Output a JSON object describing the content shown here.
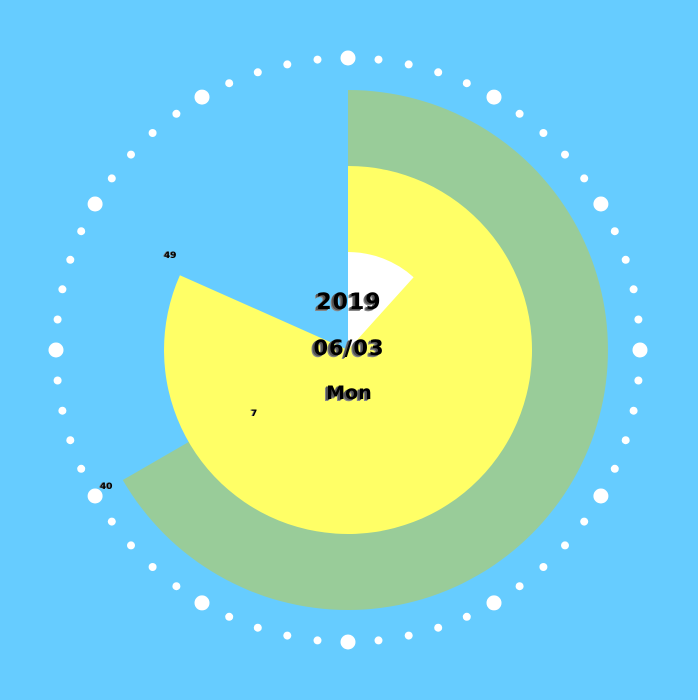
{
  "date_display": {
    "year": "2019",
    "date": "06/03",
    "weekday": "Mon"
  },
  "rings": [
    {
      "id": "outer",
      "color": "#99cc99",
      "value": 40,
      "label": "40"
    },
    {
      "id": "middle",
      "color": "#ffff66",
      "value": 49,
      "label": "49"
    },
    {
      "id": "inner",
      "color": "#ffffff",
      "value": 7,
      "label": "7"
    }
  ],
  "colors": {
    "background": "#66ccff",
    "dots": "#ffffff"
  }
}
